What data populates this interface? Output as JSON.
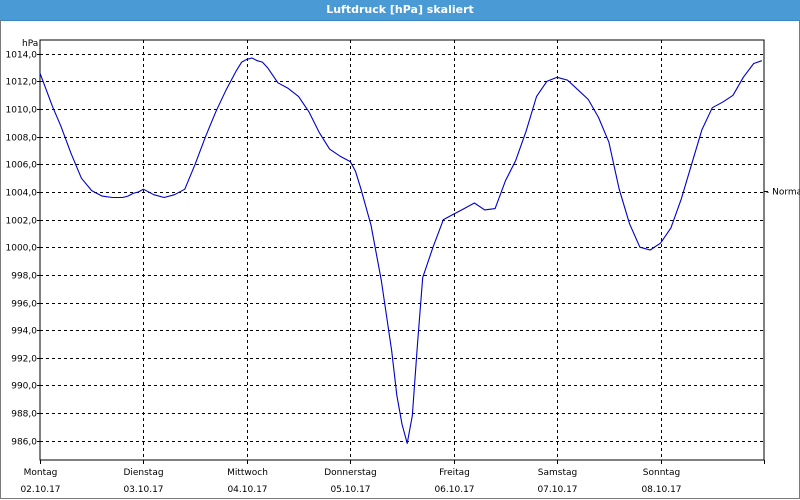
{
  "window": {
    "title": "Luftdruck [hPa] skaliert"
  },
  "chart_data": {
    "type": "line",
    "title": "Luftdruck [hPa] skaliert",
    "ylabel": "hPa",
    "xlabel": "",
    "ylim": [
      984.6,
      1015.0
    ],
    "yticks": [
      "1014,0",
      "1012,0",
      "1010,0",
      "1008,0",
      "1006,0",
      "1004,0",
      "1002,0",
      "1000,0",
      "998,0",
      "996,0",
      "994,0",
      "992,0",
      "990,0",
      "988,0",
      "986,0"
    ],
    "ytick_values": [
      1014,
      1012,
      1010,
      1008,
      1006,
      1004,
      1002,
      1000,
      998,
      996,
      994,
      992,
      990,
      988,
      986
    ],
    "days": [
      {
        "day": "Montag",
        "date": "02.10.17"
      },
      {
        "day": "Dienstag",
        "date": "03.10.17"
      },
      {
        "day": "Mittwoch",
        "date": "04.10.17"
      },
      {
        "day": "Donnerstag",
        "date": "05.10.17"
      },
      {
        "day": "Freitag",
        "date": "06.10.17"
      },
      {
        "day": "Samstag",
        "date": "07.10.17"
      },
      {
        "day": "Sonntag",
        "date": "08.10.17"
      }
    ],
    "xlim_days": [
      0,
      7
    ],
    "reference_line": {
      "label": "Normal",
      "value": 1004.1
    },
    "grid": true,
    "line_color": "#0000cc",
    "series": [
      {
        "x": [
          0.0,
          0.06,
          0.12,
          0.2,
          0.3,
          0.4,
          0.5,
          0.6,
          0.7,
          0.8,
          0.85,
          0.9,
          0.95,
          1.0,
          1.1,
          1.2,
          1.3,
          1.4,
          1.5,
          1.6,
          1.7,
          1.8,
          1.9,
          1.95,
          2.0,
          2.05,
          2.1,
          2.15,
          2.2,
          2.3,
          2.4,
          2.5,
          2.6,
          2.7,
          2.8,
          2.9,
          3.0,
          3.05,
          3.1,
          3.2,
          3.3,
          3.4,
          3.45,
          3.5,
          3.55,
          3.6,
          3.65,
          3.7,
          3.8,
          3.9,
          4.0,
          4.1,
          4.2,
          4.3,
          4.4,
          4.5,
          4.6,
          4.7,
          4.8,
          4.9,
          5.0,
          5.1,
          5.2,
          5.3,
          5.4,
          5.5,
          5.6,
          5.7,
          5.8,
          5.9,
          6.0,
          6.1,
          6.2,
          6.3,
          6.4,
          6.5,
          6.6,
          6.7,
          6.8,
          6.9,
          6.98
        ],
        "values": [
          1012.6,
          1011.4,
          1010.2,
          1008.8,
          1006.8,
          1005.0,
          1004.1,
          1003.7,
          1003.6,
          1003.6,
          1003.7,
          1003.9,
          1004.0,
          1004.2,
          1003.8,
          1003.6,
          1003.8,
          1004.2,
          1006.0,
          1008.0,
          1009.8,
          1011.4,
          1012.8,
          1013.4,
          1013.6,
          1013.7,
          1013.5,
          1013.4,
          1013.0,
          1011.9,
          1011.5,
          1010.9,
          1009.8,
          1008.3,
          1007.1,
          1006.6,
          1006.2,
          1005.5,
          1004.3,
          1001.6,
          997.6,
          992.5,
          989.3,
          987.2,
          985.8,
          987.8,
          993.0,
          997.8,
          1000.0,
          1002.0,
          1002.4,
          1002.8,
          1003.2,
          1002.7,
          1002.8,
          1004.8,
          1006.3,
          1008.4,
          1010.9,
          1012.0,
          1012.3,
          1012.1,
          1011.4,
          1010.7,
          1009.4,
          1007.6,
          1004.2,
          1001.7,
          1000.0,
          999.8,
          1000.3,
          1001.4,
          1003.5,
          1006.0,
          1008.5,
          1010.1,
          1010.5,
          1011.0,
          1012.3,
          1013.3,
          1013.5
        ]
      }
    ]
  }
}
